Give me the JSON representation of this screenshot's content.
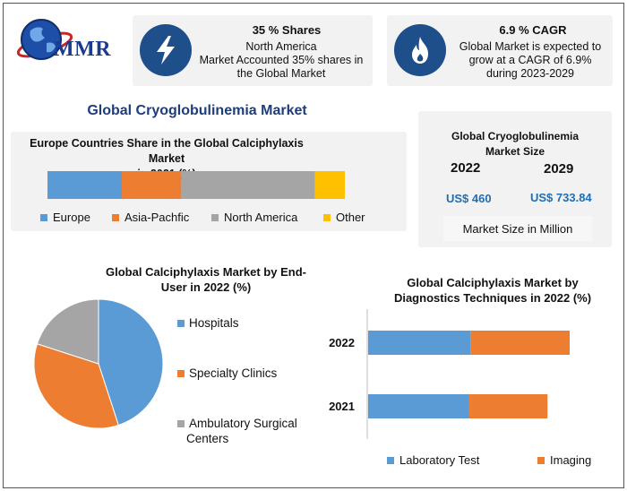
{
  "brand": {
    "logo_text": "MMR"
  },
  "stat_shares": {
    "icon": "lightning-icon",
    "title": "35 % Shares",
    "line1": "North America",
    "line2": "Market Accounted 35% shares in",
    "line3": "the Global Market"
  },
  "stat_cagr": {
    "icon": "flame-icon",
    "title": "6.9 % CAGR",
    "line1": "Global Market is expected to",
    "line2": "grow at a CAGR of 6.9%",
    "line3": "during 2023-2029"
  },
  "main_title": "Global Cryoglobulinemia Market",
  "market_size": {
    "title_line1": "Global Cryoglobulinemia",
    "title_line2": "Market Size",
    "year_a": "2022",
    "year_b": "2029",
    "value_a": "US$ 460",
    "value_b": "US$ 733.84",
    "unit": "Market Size in Million"
  },
  "colors": {
    "blue": "#5b9bd5",
    "orange": "#ed7d31",
    "gray": "#a5a5a5",
    "yellow": "#ffc000",
    "navy": "#1e4f8a"
  },
  "chart_data": [
    {
      "type": "bar",
      "orientation": "horizontal-stacked-100",
      "title_line1": "Europe Countries Share in the Global Calciphylaxis Market",
      "title_line2": "in 2021 (%)",
      "series": [
        {
          "name": "Europe",
          "values": [
            25
          ]
        },
        {
          "name": "Asia-Pachfic",
          "values": [
            20
          ]
        },
        {
          "name": "North America",
          "values": [
            45
          ]
        },
        {
          "name": "Other",
          "values": [
            10
          ]
        }
      ],
      "legend_position": "bottom"
    },
    {
      "type": "pie",
      "title_line1": "Global Calciphylaxis Market by End-",
      "title_line2": "User in 2022 (%)",
      "labels": [
        "Hospitals",
        "Specialty Clinics",
        "Ambulatory Surgical Centers"
      ],
      "legend_lines": [
        "Hospitals",
        "Specialty Clinics",
        "Ambulatory Surgical",
        "Centers"
      ],
      "values": [
        45,
        35,
        20
      ],
      "legend_position": "right"
    },
    {
      "type": "bar",
      "orientation": "horizontal-stacked",
      "title_line1": "Global Calciphylaxis Market by",
      "title_line2": "Diagnostics Techniques in 2022 (%)",
      "categories": [
        "2022",
        "2021"
      ],
      "series": [
        {
          "name": "Laboratory Test",
          "values": [
            51,
            50
          ]
        },
        {
          "name": "Imaging",
          "values": [
            49,
            39
          ]
        }
      ],
      "xlim": [
        0,
        120
      ],
      "legend_position": "bottom"
    }
  ]
}
